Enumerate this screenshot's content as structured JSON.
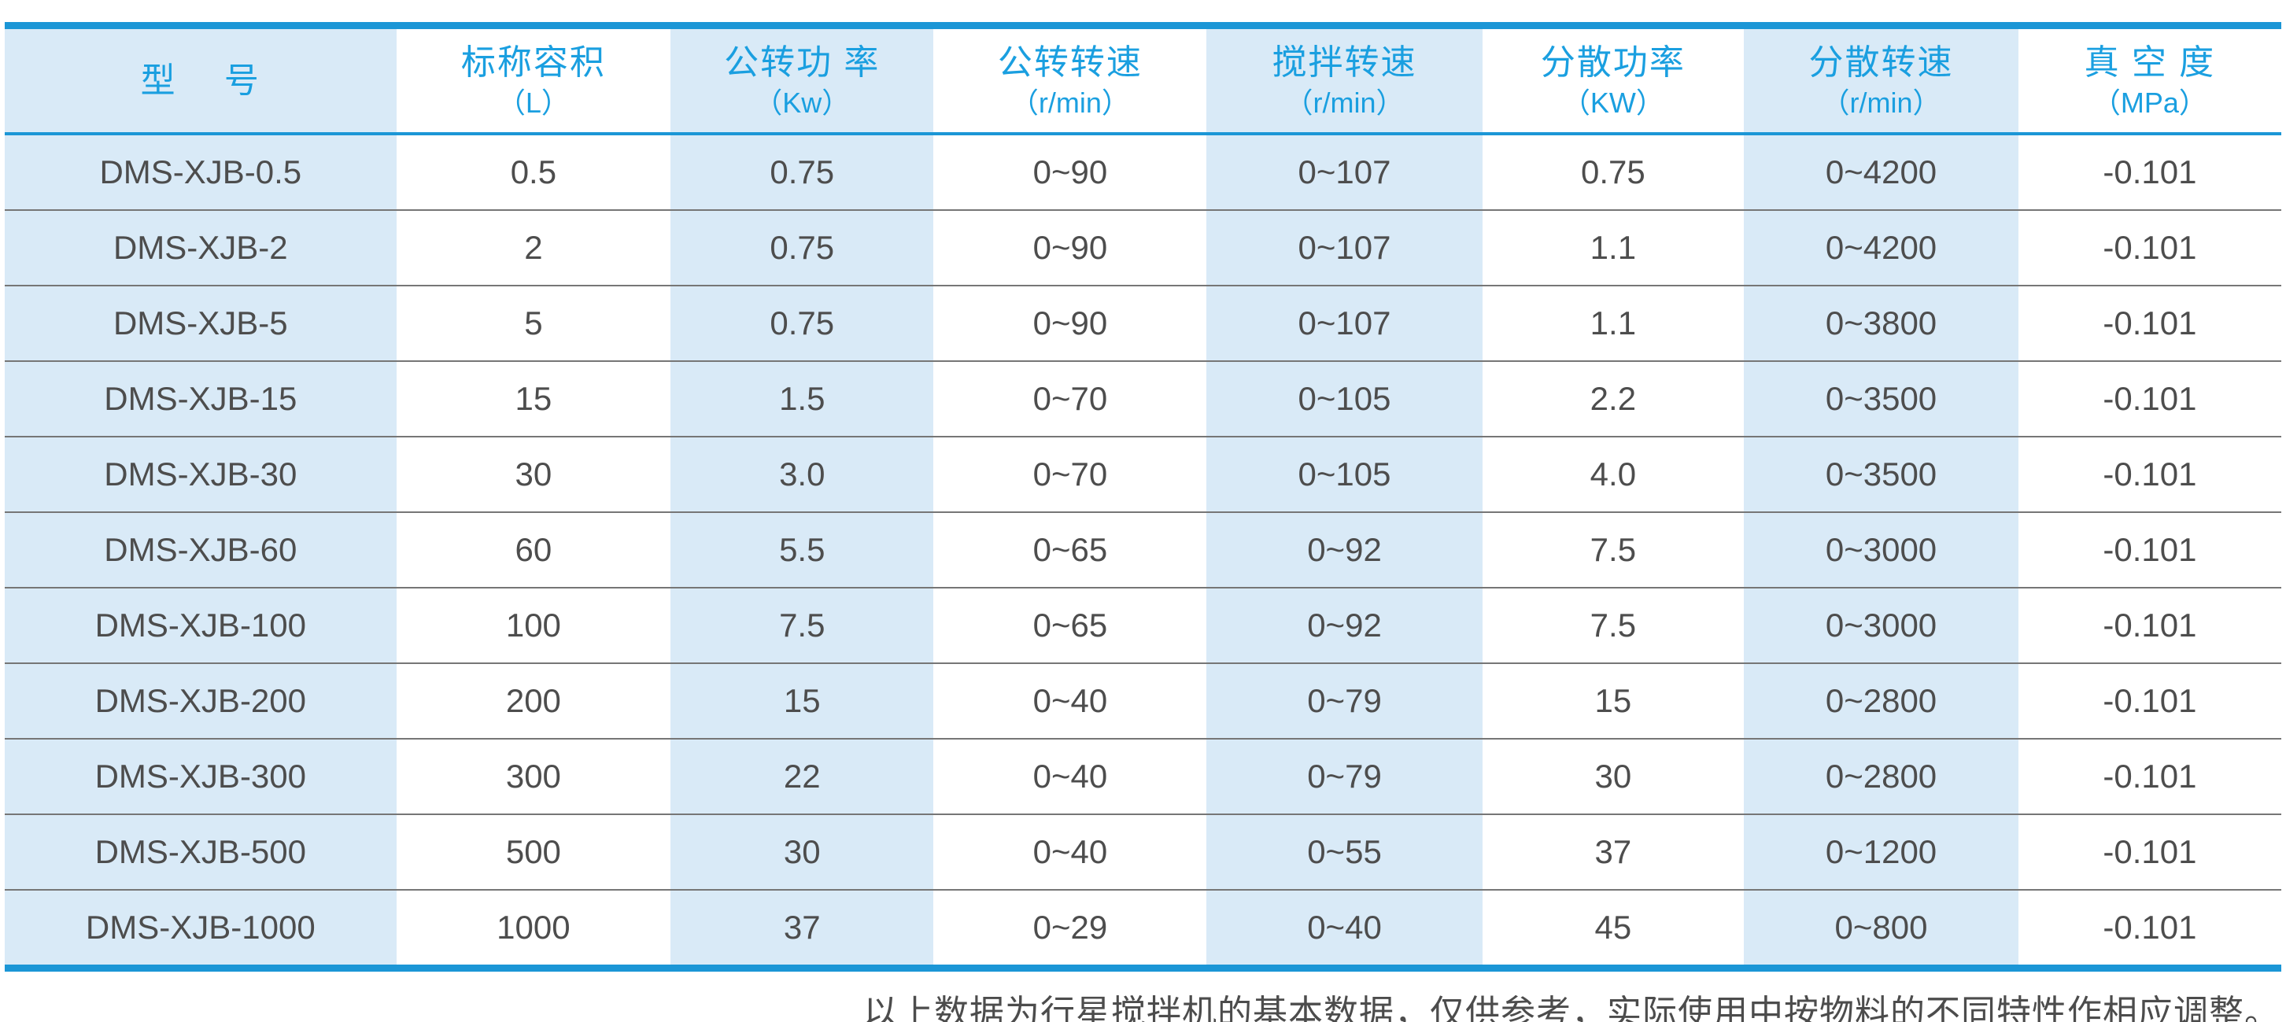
{
  "table": {
    "columns": [
      {
        "title": "型　 号",
        "unit": ""
      },
      {
        "title": "标称容积",
        "unit": "（L）"
      },
      {
        "title": "公转功 率",
        "unit": "（Kw）"
      },
      {
        "title": "公转转速",
        "unit": "（r/min）"
      },
      {
        "title": "搅拌转速",
        "unit": "（r/min）"
      },
      {
        "title": "分散功率",
        "unit": "（KW）"
      },
      {
        "title": "分散转速",
        "unit": "（r/min）"
      },
      {
        "title": "真 空 度",
        "unit": "（MPa）"
      }
    ],
    "rows": [
      [
        "DMS-XJB-0.5",
        "0.5",
        "0.75",
        "0~90",
        "0~107",
        "0.75",
        "0~4200",
        "-0.101"
      ],
      [
        "DMS-XJB-2",
        "2",
        "0.75",
        "0~90",
        "0~107",
        "1.1",
        "0~4200",
        "-0.101"
      ],
      [
        "DMS-XJB-5",
        "5",
        "0.75",
        "0~90",
        "0~107",
        "1.1",
        "0~3800",
        "-0.101"
      ],
      [
        "DMS-XJB-15",
        "15",
        "1.5",
        "0~70",
        "0~105",
        "2.2",
        "0~3500",
        "-0.101"
      ],
      [
        "DMS-XJB-30",
        "30",
        "3.0",
        "0~70",
        "0~105",
        "4.0",
        "0~3500",
        "-0.101"
      ],
      [
        "DMS-XJB-60",
        "60",
        "5.5",
        "0~65",
        "0~92",
        "7.5",
        "0~3000",
        "-0.101"
      ],
      [
        "DMS-XJB-100",
        "100",
        "7.5",
        "0~65",
        "0~92",
        "7.5",
        "0~3000",
        "-0.101"
      ],
      [
        "DMS-XJB-200",
        "200",
        "15",
        "0~40",
        "0~79",
        "15",
        "0~2800",
        "-0.101"
      ],
      [
        "DMS-XJB-300",
        "300",
        "22",
        "0~40",
        "0~79",
        "30",
        "0~2800",
        "-0.101"
      ],
      [
        "DMS-XJB-500",
        "500",
        "30",
        "0~40",
        "0~55",
        "37",
        "0~1200",
        "-0.101"
      ],
      [
        "DMS-XJB-1000",
        "1000",
        "37",
        "0~29",
        "0~40",
        "45",
        "0~800",
        "-0.101"
      ]
    ]
  },
  "footer": {
    "note": "以上数据为行星搅拌机的基本数据，仅供参考，实际使用中按物料的不同特性作相应调整。"
  },
  "colors": {
    "accent_border_blue": "#1b96d6",
    "header_text_blue": "#1a9fe0",
    "stripe_light_blue": "#d9eaf7",
    "body_text_gray": "#4d4d4d",
    "row_divider_gray": "#767676"
  }
}
